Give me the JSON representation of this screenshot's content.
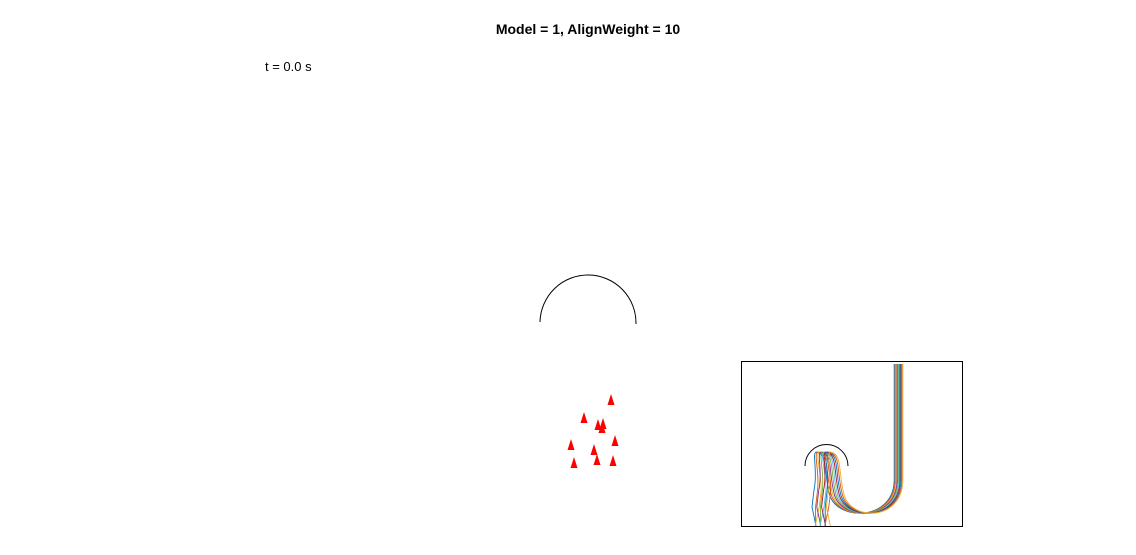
{
  "figure": {
    "title": "Model = 1, AlignWeight = 10",
    "time_label": "t = 0.0 s"
  },
  "scene": {
    "agent_color": "#ff0000",
    "obstacle_color": "#000000",
    "agent_count": 11
  },
  "inset": {
    "trail_colors": [
      "#0072bd",
      "#d95319",
      "#edb120",
      "#7e2f8e",
      "#77ac30",
      "#4dbeee",
      "#a2142f"
    ]
  }
}
